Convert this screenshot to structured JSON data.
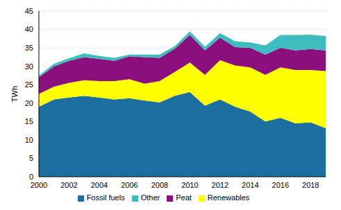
{
  "chart_data": {
    "type": "area",
    "stacked": true,
    "y_label": "TWh",
    "x": [
      2000,
      2001,
      2002,
      2003,
      2004,
      2005,
      2006,
      2007,
      2008,
      2009,
      2010,
      2011,
      2012,
      2013,
      2014,
      2015,
      2016,
      2017,
      2018,
      2019
    ],
    "xlim": [
      2000,
      2019
    ],
    "xticks": [
      2000,
      2002,
      2004,
      2006,
      2008,
      2010,
      2012,
      2014,
      2016,
      2018
    ],
    "ylim": [
      0,
      45
    ],
    "yticks": [
      0,
      5,
      10,
      15,
      20,
      25,
      30,
      35,
      40,
      45
    ],
    "grid": true,
    "legend": "bottom",
    "series": [
      {
        "name": "Fossil fuels",
        "color": "#1c6fa0",
        "values": [
          19,
          21,
          21.5,
          22,
          21.5,
          21,
          21.3,
          20.7,
          20.2,
          22,
          23,
          19.3,
          21,
          19,
          17.7,
          15,
          16,
          14.5,
          14.8,
          13.2
        ]
      },
      {
        "name": "Renewables",
        "color": "#ffff00",
        "values": [
          3.5,
          3.5,
          4,
          4.2,
          4.5,
          5,
          5.2,
          4.6,
          5.8,
          6.5,
          8,
          8.4,
          10.7,
          11.2,
          12,
          12.7,
          13.7,
          14.5,
          14.2,
          15.5
        ]
      },
      {
        "name": "Peat",
        "color": "#8b0f7d",
        "values": [
          4.5,
          5.5,
          6,
          6.3,
          6,
          5.5,
          6.2,
          7.2,
          6.3,
          6.3,
          7.5,
          6.6,
          6.1,
          5,
          5.3,
          5.5,
          5.3,
          5.3,
          5.7,
          5.6
        ]
      },
      {
        "name": "Other",
        "color": "#3dbdbd",
        "values": [
          0.5,
          0.7,
          0.7,
          1,
          0.8,
          0.8,
          0.5,
          0.7,
          0.9,
          0.7,
          1,
          1,
          1.2,
          1.6,
          1.5,
          2.5,
          3.5,
          4.2,
          3.9,
          3.9
        ]
      }
    ]
  }
}
